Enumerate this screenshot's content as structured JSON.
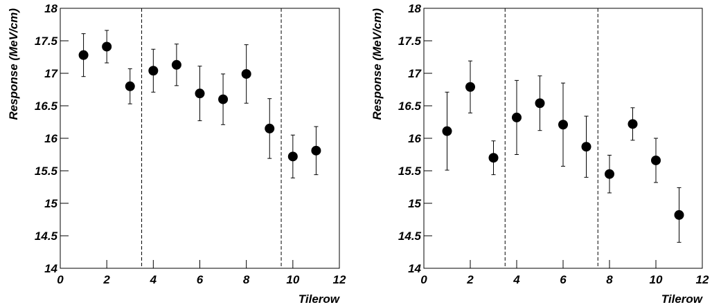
{
  "chart_data": [
    {
      "type": "scatter",
      "ylabel": "Response (MeV/cm)",
      "xlabel": "Tilerow",
      "x": [
        1,
        2,
        3,
        4,
        5,
        6,
        7,
        8,
        9,
        10,
        11
      ],
      "values": [
        17.28,
        17.41,
        16.8,
        17.04,
        17.13,
        16.69,
        16.6,
        16.99,
        16.15,
        15.72,
        15.81
      ],
      "errors": [
        0.33,
        0.25,
        0.27,
        0.33,
        0.32,
        0.42,
        0.39,
        0.45,
        0.46,
        0.33,
        0.37
      ],
      "color": "#000000",
      "vlines": [
        3.5,
        9.5
      ],
      "xlim": [
        0,
        12
      ],
      "xticks": [
        0,
        2,
        4,
        6,
        8,
        10,
        12
      ],
      "ylim": [
        14,
        18
      ],
      "yticks": [
        14,
        14.5,
        15,
        15.5,
        16,
        16.5,
        17,
        17.5,
        18
      ]
    },
    {
      "type": "scatter",
      "ylabel": "Response (MeV/cm)",
      "xlabel": "Tilerow",
      "x": [
        1,
        2,
        3,
        4,
        5,
        6,
        7,
        8,
        9,
        10,
        11
      ],
      "values": [
        16.11,
        16.79,
        15.7,
        16.32,
        16.54,
        16.21,
        15.87,
        15.45,
        16.22,
        15.66,
        14.82
      ],
      "errors": [
        0.6,
        0.4,
        0.26,
        0.57,
        0.42,
        0.64,
        0.47,
        0.29,
        0.25,
        0.34,
        0.42
      ],
      "color": "#000000",
      "vlines": [
        3.5,
        7.5
      ],
      "xlim": [
        0,
        12
      ],
      "xticks": [
        0,
        2,
        4,
        6,
        8,
        10,
        12
      ],
      "ylim": [
        14,
        18
      ],
      "yticks": [
        14,
        14.5,
        15,
        15.5,
        16,
        16.5,
        17,
        17.5,
        18
      ]
    }
  ]
}
